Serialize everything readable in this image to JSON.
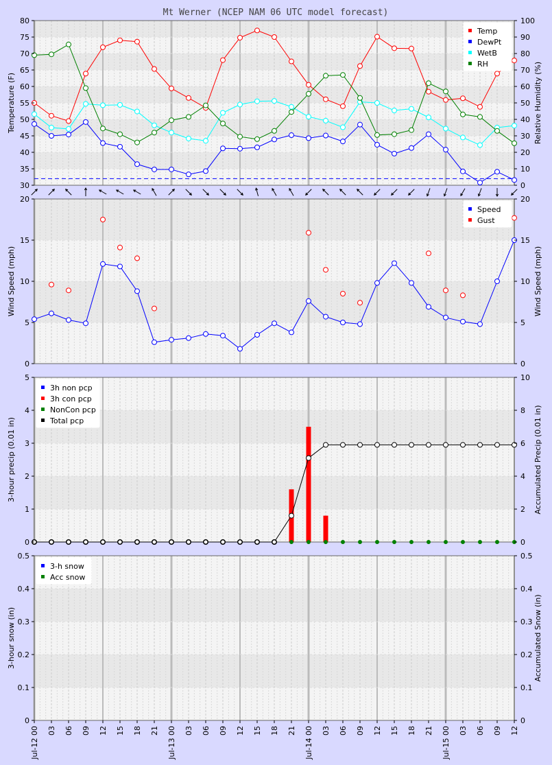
{
  "chart_data": {
    "title": "Mt Werner (NCEP NAM 06 UTC model forecast)",
    "type": "line",
    "x": [
      "Jul-12 00",
      "03",
      "06",
      "09",
      "12",
      "15",
      "18",
      "21",
      "Jul-13 00",
      "03",
      "06",
      "09",
      "12",
      "15",
      "18",
      "21",
      "Jul-14 00",
      "03",
      "06",
      "09",
      "12",
      "15",
      "18",
      "21",
      "Jul-15 00",
      "03",
      "06",
      "09",
      "12"
    ],
    "panels": [
      {
        "id": "temp",
        "ylabel": "Temperature (F)",
        "y2label": "Relative Humidity (%)",
        "ylim": [
          30,
          80
        ],
        "y2lim": [
          0,
          100
        ],
        "yticks": [
          30,
          35,
          40,
          45,
          50,
          55,
          60,
          65,
          70,
          75,
          80
        ],
        "y2ticks": [
          0,
          10,
          20,
          30,
          40,
          50,
          60,
          70,
          80,
          90,
          100
        ],
        "reference_line": 32,
        "legend": [
          {
            "name": "Temp",
            "color": "#ff0000"
          },
          {
            "name": "DewPt",
            "color": "#0000ff"
          },
          {
            "name": "WetB",
            "color": "#00ffff"
          },
          {
            "name": "RH",
            "color": "#008000"
          }
        ],
        "series": [
          {
            "name": "Temp",
            "axis": "left",
            "color": "#ff0000",
            "values": [
              55.0,
              51.1,
              49.5,
              63.9,
              71.9,
              74.0,
              73.6,
              65.3,
              59.4,
              56.5,
              53.5,
              68.0,
              74.8,
              77.0,
              75.0,
              67.6,
              60.5,
              56.1,
              54.0,
              66.2,
              75.1,
              71.6,
              71.5,
              58.4,
              55.9,
              56.4,
              53.8,
              63.9,
              67.9
            ]
          },
          {
            "name": "DewPt",
            "axis": "left",
            "color": "#0000ff",
            "values": [
              48.6,
              45.0,
              45.4,
              49.2,
              42.8,
              41.7,
              36.4,
              34.8,
              34.8,
              33.3,
              34.3,
              41.2,
              41.1,
              41.5,
              43.9,
              45.2,
              44.3,
              45.1,
              43.3,
              48.4,
              42.3,
              39.6,
              41.3,
              45.5,
              40.8,
              34.2,
              30.8,
              34.1,
              31.6
            ]
          },
          {
            "name": "WetB",
            "axis": "left",
            "color": "#00ffff",
            "values": [
              51.6,
              47.5,
              47.1,
              54.7,
              54.3,
              54.4,
              52.4,
              48.2,
              46.0,
              44.2,
              43.5,
              52.0,
              54.5,
              55.5,
              55.6,
              53.8,
              50.8,
              49.6,
              47.6,
              55.3,
              55.0,
              52.7,
              53.2,
              50.6,
              47.2,
              44.5,
              42.2,
              47.5,
              48.1
            ]
          },
          {
            "name": "RH",
            "axis": "right",
            "color": "#008000",
            "values": [
              79,
              79.5,
              85.5,
              59,
              34.5,
              31,
              26,
              32,
              39.5,
              41.5,
              48.5,
              37.5,
              29.5,
              28,
              33,
              44.5,
              55.5,
              66.5,
              67,
              53,
              30.5,
              31,
              33.5,
              62,
              57,
              43,
              41.5,
              33,
              25.5
            ]
          }
        ],
        "wind_direction_deg": [
          45,
          45,
          315,
          0,
          300,
          300,
          300,
          330,
          45,
          135,
          135,
          135,
          135,
          345,
          330,
          330,
          225,
          315,
          315,
          315,
          225,
          225,
          225,
          200,
          200,
          210,
          200,
          180,
          225
        ]
      },
      {
        "id": "wind",
        "ylabel": "Wind Speed (mph)",
        "y2label": "Wind Speed (mph)",
        "ylim": [
          0,
          20
        ],
        "yticks": [
          0,
          5,
          10,
          15,
          20
        ],
        "legend": [
          {
            "name": "Speed",
            "color": "#0000ff"
          },
          {
            "name": "Gust",
            "color": "#ff0000"
          }
        ],
        "series": [
          {
            "name": "Speed",
            "color": "#0000ff",
            "style": "line",
            "values": [
              5.4,
              6.1,
              5.3,
              4.9,
              12.1,
              11.8,
              8.8,
              2.6,
              2.9,
              3.1,
              3.6,
              3.4,
              1.8,
              3.5,
              4.9,
              3.8,
              7.6,
              5.7,
              5.0,
              4.8,
              9.8,
              12.2,
              9.8,
              6.9,
              5.6,
              5.1,
              4.8,
              10.0,
              15.0
            ]
          },
          {
            "name": "Gust",
            "color": "#ff0000",
            "style": "points",
            "values": [
              null,
              9.6,
              8.9,
              null,
              17.5,
              14.1,
              12.8,
              6.7,
              null,
              null,
              null,
              null,
              null,
              null,
              null,
              null,
              15.9,
              11.4,
              8.5,
              7.4,
              null,
              null,
              null,
              13.4,
              8.9,
              8.3,
              null,
              null,
              17.7
            ]
          }
        ]
      },
      {
        "id": "precip",
        "ylabel": "3-hour precip (0.01 in)",
        "y2label": "Accumulated Precip (0.01 in)",
        "ylim": [
          0,
          5
        ],
        "y2lim": [
          0,
          10
        ],
        "yticks": [
          0,
          1,
          2,
          3,
          4,
          5
        ],
        "y2ticks": [
          0,
          2,
          4,
          6,
          8,
          10
        ],
        "legend": [
          {
            "name": "3h non pcp",
            "color": "#0000ff"
          },
          {
            "name": "3h con pcp",
            "color": "#ff0000"
          },
          {
            "name": "NonCon pcp",
            "color": "#008000"
          },
          {
            "name": "Total pcp",
            "color": "#000000"
          }
        ],
        "series": [
          {
            "name": "3h con pcp",
            "color": "#ff0000",
            "style": "bar",
            "axis": "left",
            "values": [
              0,
              0,
              0,
              0,
              0,
              0,
              0,
              0,
              0,
              0,
              0,
              0,
              0,
              0,
              0,
              1.6,
              3.5,
              0.8,
              0,
              0,
              0,
              0,
              0,
              0,
              0,
              0,
              0,
              0,
              0
            ]
          },
          {
            "name": "NonCon pcp",
            "color": "#008000",
            "style": "points",
            "axis": "right",
            "values": [
              0,
              0,
              0,
              0,
              0,
              0,
              0,
              0,
              0,
              0,
              0,
              0,
              0,
              0,
              0,
              0,
              0,
              0,
              0,
              0,
              0,
              0,
              0,
              0,
              0,
              0,
              0,
              0,
              0
            ]
          },
          {
            "name": "Total pcp",
            "color": "#000000",
            "style": "line",
            "axis": "right",
            "values": [
              0,
              0,
              0,
              0,
              0,
              0,
              0,
              0,
              0,
              0,
              0,
              0,
              0,
              0,
              0,
              1.6,
              5.1,
              5.9,
              5.9,
              5.9,
              5.9,
              5.9,
              5.9,
              5.9,
              5.9,
              5.9,
              5.9,
              5.9,
              5.9
            ]
          }
        ]
      },
      {
        "id": "snow",
        "ylabel": "3-hour snow (in)",
        "y2label": "Accumulated Snow (in)",
        "ylim": [
          0,
          0.5
        ],
        "y2lim": [
          0,
          0.5
        ],
        "yticks": [
          0,
          0.1,
          0.2,
          0.3,
          0.4,
          0.5
        ],
        "legend": [
          {
            "name": "3-h snow",
            "color": "#0000ff"
          },
          {
            "name": "Acc snow",
            "color": "#008000"
          }
        ],
        "series": []
      }
    ]
  }
}
